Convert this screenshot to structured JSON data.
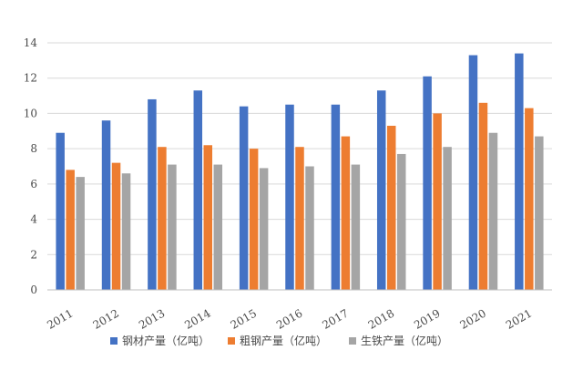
{
  "chart_data": {
    "type": "bar",
    "categories": [
      "2011",
      "2012",
      "2013",
      "2014",
      "2015",
      "2016",
      "2017",
      "2018",
      "2019",
      "2020",
      "2021"
    ],
    "series": [
      {
        "name": "钢材产量（亿吨）",
        "color": "#4472c4",
        "values": [
          8.9,
          9.6,
          10.8,
          11.3,
          10.4,
          10.5,
          10.5,
          11.3,
          12.1,
          13.3,
          13.4
        ]
      },
      {
        "name": "粗钢产量（亿吨）",
        "color": "#ed7d31",
        "values": [
          6.8,
          7.2,
          8.1,
          8.2,
          8.0,
          8.1,
          8.7,
          9.3,
          10.0,
          10.6,
          10.3
        ]
      },
      {
        "name": "生铁产量（亿吨）",
        "color": "#a5a5a5",
        "values": [
          6.4,
          6.6,
          7.1,
          7.1,
          6.9,
          7.0,
          7.1,
          7.7,
          8.1,
          8.9,
          8.7
        ]
      }
    ],
    "ylim": [
      0,
      14
    ],
    "yticks": [
      0,
      2,
      4,
      6,
      8,
      10,
      12,
      14
    ],
    "grid": true,
    "legend": "bottom"
  }
}
